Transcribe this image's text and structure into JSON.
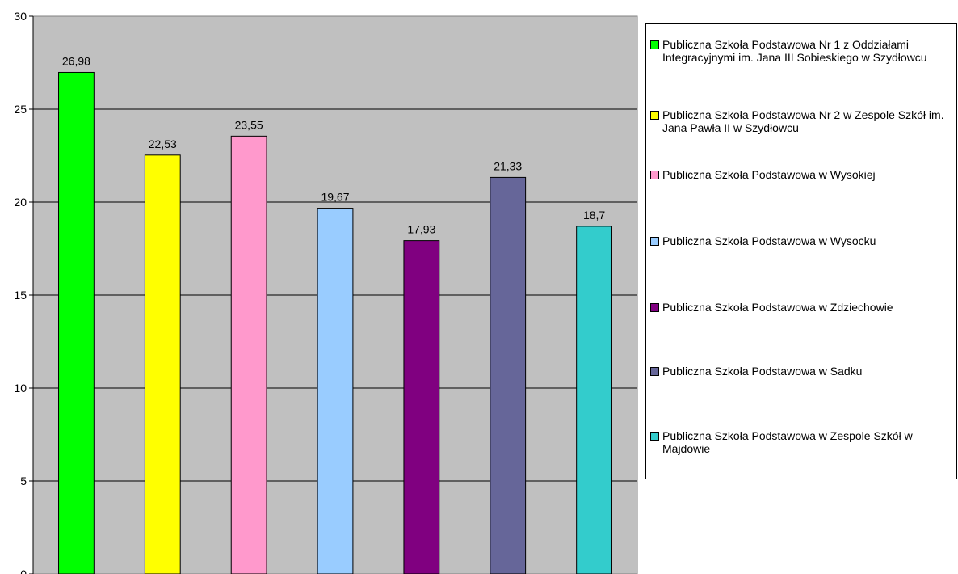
{
  "chart_data": {
    "type": "bar",
    "categories": [
      "Publiczna Szkoła Podstawowa Nr 1 z Oddziałami Integracyjnymi im. Jana III Sobieskiego w Szydłowcu",
      "Publiczna Szkoła Podstawowa Nr 2 w Zespole Szkół im. Jana Pawła II w Szydłowcu",
      "Publiczna Szkoła Podstawowa w Wysokiej",
      "Publiczna Szkoła Podstawowa w Wysocku",
      "Publiczna Szkoła Podstawowa w Zdziechowie",
      "Publiczna Szkoła Podstawowa w Sadku",
      "Publiczna Szkoła Podstawowa w Zespole Szkół w Majdowie"
    ],
    "values": [
      26.98,
      22.53,
      23.55,
      19.67,
      17.93,
      21.33,
      18.7
    ],
    "value_labels": [
      "26,98",
      "22,53",
      "23,55",
      "19,67",
      "17,93",
      "21,33",
      "18,7"
    ],
    "colors": [
      "#00ff00",
      "#ffff00",
      "#ff99cc",
      "#99ccff",
      "#800080",
      "#666699",
      "#33cccc"
    ],
    "ylim": [
      0,
      30
    ],
    "yticks": [
      0,
      5,
      10,
      15,
      20,
      25,
      30
    ],
    "title": "",
    "xlabel": "",
    "ylabel": "",
    "grid": true,
    "plot_background": "#c0c0c0",
    "legend_position": "right"
  }
}
